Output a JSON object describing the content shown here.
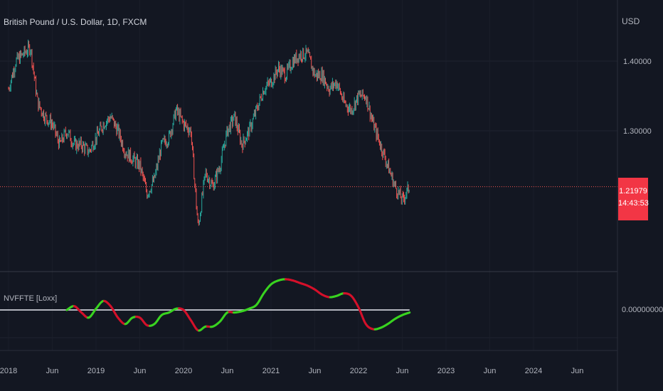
{
  "header": {
    "title": "British Pound / U.S. Dollar, 1D, FXCM"
  },
  "price_axis": {
    "currency": "USD",
    "current_price": "1.21979",
    "countdown": "14:43:53",
    "ticks": [
      "1.40000",
      "1.30000"
    ]
  },
  "indicator": {
    "name": "NVFFTE [Loxx]",
    "zero_label": "0.00000000"
  },
  "time_axis": {
    "labels": [
      "2018",
      "Jun",
      "2019",
      "Jun",
      "2020",
      "Jun",
      "2021",
      "Jun",
      "2022",
      "Jun",
      "2023",
      "Jun",
      "2024",
      "Jun"
    ]
  },
  "colors": {
    "background": "#131722",
    "up_candle": "#26a69a",
    "down_candle": "#ef5350",
    "indicator_up": "#39d320",
    "indicator_down": "#d4102a",
    "zero_line": "#b2b5be",
    "price_tag": "#f23645"
  },
  "chart_data": [
    {
      "type": "line",
      "description": "GBPUSD daily close (approximate path)",
      "x_dates": [
        "2018-01",
        "2018-02",
        "2018-03",
        "2018-04",
        "2018-05",
        "2018-06",
        "2018-07",
        "2018-08",
        "2018-09",
        "2018-10",
        "2018-11",
        "2018-12",
        "2019-01",
        "2019-02",
        "2019-03",
        "2019-04",
        "2019-05",
        "2019-06",
        "2019-07",
        "2019-08",
        "2019-09",
        "2019-10",
        "2019-11",
        "2019-12",
        "2020-01",
        "2020-02",
        "2020-03",
        "2020-04",
        "2020-05",
        "2020-06",
        "2020-07",
        "2020-08",
        "2020-09",
        "2020-10",
        "2020-11",
        "2020-12",
        "2021-01",
        "2021-02",
        "2021-03",
        "2021-04",
        "2021-05",
        "2021-06",
        "2021-07",
        "2021-08",
        "2021-09",
        "2021-10",
        "2021-11",
        "2021-12",
        "2022-01",
        "2022-02",
        "2022-03",
        "2022-04",
        "2022-05",
        "2022-06",
        "2022-07",
        "2022-08"
      ],
      "values": [
        1.36,
        1.4,
        1.41,
        1.42,
        1.34,
        1.32,
        1.31,
        1.28,
        1.3,
        1.28,
        1.28,
        1.27,
        1.29,
        1.31,
        1.32,
        1.3,
        1.27,
        1.26,
        1.25,
        1.21,
        1.23,
        1.28,
        1.29,
        1.33,
        1.31,
        1.3,
        1.16,
        1.24,
        1.22,
        1.25,
        1.3,
        1.32,
        1.28,
        1.3,
        1.33,
        1.36,
        1.37,
        1.39,
        1.38,
        1.4,
        1.41,
        1.41,
        1.38,
        1.38,
        1.36,
        1.37,
        1.34,
        1.33,
        1.35,
        1.35,
        1.31,
        1.28,
        1.25,
        1.22,
        1.2,
        1.22
      ],
      "ylim": [
        1.12,
        1.46
      ],
      "current_price": 1.21979,
      "y_ticks": [
        1.4,
        1.3
      ]
    },
    {
      "type": "line",
      "name": "NVFFTE [Loxx]",
      "description": "Oscillator curve, colored green when rising and red when falling",
      "x_dates": [
        "2018-09",
        "2018-10",
        "2018-11",
        "2018-12",
        "2019-01",
        "2019-02",
        "2019-03",
        "2019-04",
        "2019-05",
        "2019-06",
        "2019-07",
        "2019-08",
        "2019-09",
        "2019-10",
        "2019-11",
        "2019-12",
        "2020-01",
        "2020-02",
        "2020-03",
        "2020-04",
        "2020-05",
        "2020-06",
        "2020-07",
        "2020-08",
        "2020-09",
        "2020-10",
        "2020-11",
        "2020-12",
        "2021-01",
        "2021-02",
        "2021-03",
        "2021-04",
        "2021-05",
        "2021-06",
        "2021-07",
        "2021-08",
        "2021-09",
        "2021-10",
        "2021-11",
        "2021-12",
        "2022-01",
        "2022-02",
        "2022-03",
        "2022-04",
        "2022-05",
        "2022-06",
        "2022-07",
        "2022-08"
      ],
      "values": [
        0.0,
        0.3,
        -0.2,
        -0.6,
        0.1,
        0.7,
        0.3,
        -0.6,
        -1.1,
        -0.6,
        -0.6,
        -1.2,
        -1.1,
        -0.4,
        -0.2,
        0.1,
        0.0,
        -0.8,
        -1.6,
        -1.3,
        -1.3,
        -0.9,
        -0.2,
        -0.2,
        -0.1,
        0.1,
        0.4,
        1.3,
        2.0,
        2.3,
        2.4,
        2.3,
        2.1,
        1.9,
        1.6,
        1.2,
        1.0,
        1.1,
        1.3,
        1.1,
        0.2,
        -1.1,
        -1.5,
        -1.4,
        -1.1,
        -0.7,
        -0.4,
        -0.2
      ],
      "zero_line": 0
    }
  ]
}
